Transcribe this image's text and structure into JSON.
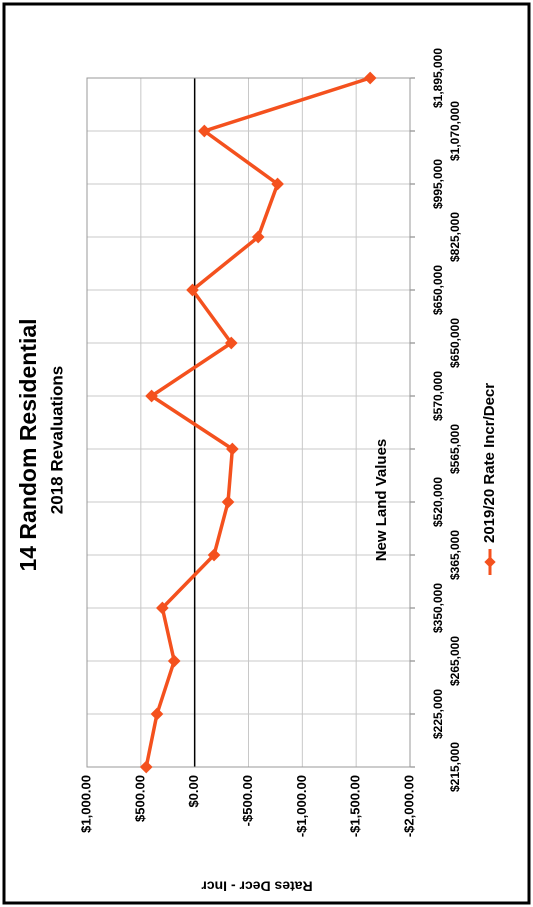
{
  "chart_data": {
    "type": "line",
    "title": "14 Random Residential",
    "subtitle": "2018 Revaluations",
    "x_label": "New Land Values",
    "y_label": "Rates Decr - Incr",
    "categories": [
      "$215,000",
      "$225,000",
      "$265,000",
      "$350,000",
      "$365,000",
      "$520,000",
      "$565,000",
      "$570,000",
      "$650,000",
      "$650,000",
      "$825,000",
      "$995,000",
      "$1,070,000",
      "$1,895,000"
    ],
    "series": [
      {
        "name": "2019/20 Rate Incr/Decr",
        "color": "#f4511e",
        "values": [
          450,
          350,
          190,
          300,
          -180,
          -310,
          -350,
          400,
          -340,
          20,
          -590,
          -770,
          -90,
          -1630
        ]
      }
    ],
    "ylim": [
      -2000,
      1000
    ],
    "yticks": [
      {
        "value": 1000,
        "label": "$1,000.00"
      },
      {
        "value": 500,
        "label": "$500.00"
      },
      {
        "value": 0,
        "label": "$0.00"
      },
      {
        "value": -500,
        "label": "-$500.00"
      },
      {
        "value": -1000,
        "label": "-$1,000.00"
      },
      {
        "value": -1500,
        "label": "-$1,500.00"
      },
      {
        "value": -2000,
        "label": "-$2,000.00"
      }
    ],
    "negative_tick_color": "#ff0000",
    "grid": true,
    "rotation": -90
  }
}
